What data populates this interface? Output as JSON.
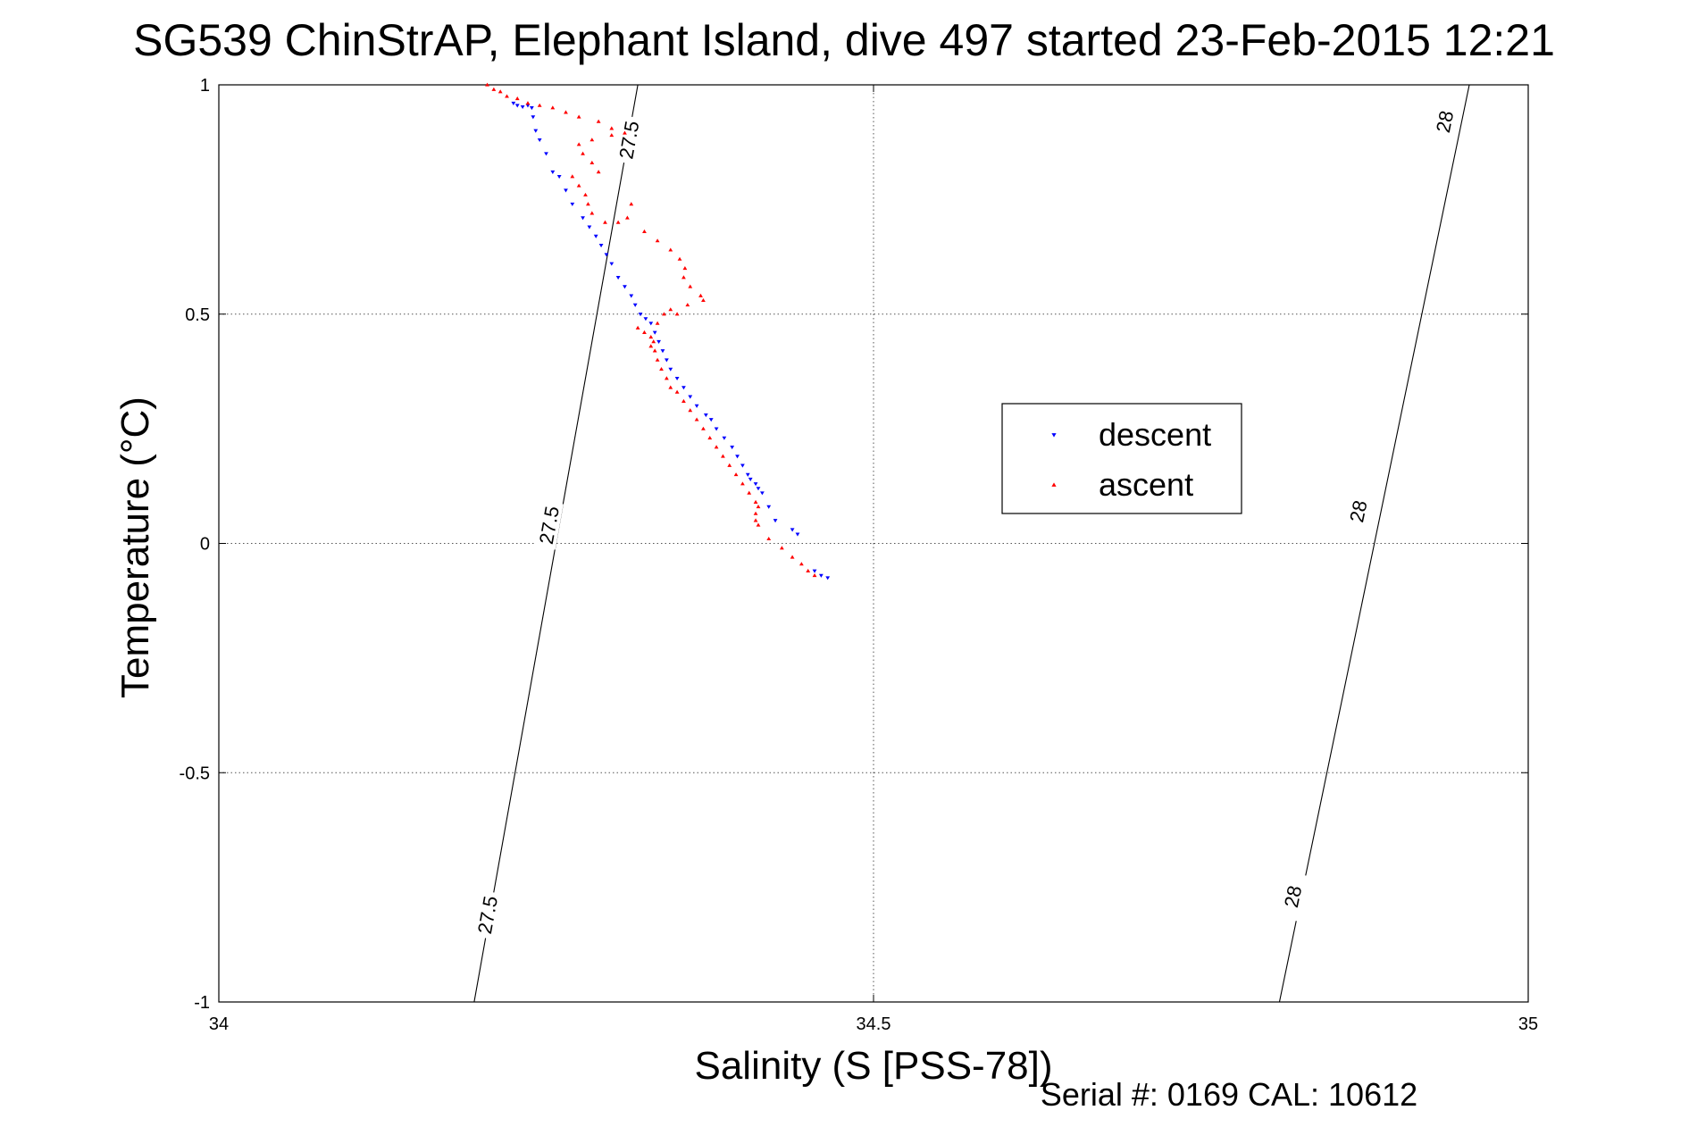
{
  "chart_data": {
    "type": "scatter",
    "title": "SG539 ChinStrAP, Elephant Island, dive 497 started 23-Feb-2015 12:21",
    "xlabel": "Salinity (S [PSS-78])",
    "ylabel": "Temperature (°C)",
    "xlim": [
      34,
      35
    ],
    "ylim": [
      -1,
      1
    ],
    "xticks": [
      "34",
      "34.5",
      "35"
    ],
    "yticks": [
      "1",
      "0.5",
      "0",
      "-0.5",
      "-1"
    ],
    "grid": true,
    "legend_position": "center-right",
    "footer": "Serial #: 0169 CAL: 10612",
    "contours": [
      {
        "label": "27.5",
        "points": [
          [
            34.195,
            -1.0
          ],
          [
            34.32,
            1.0
          ]
        ],
        "label_positions": [
          [
            34.205,
            -0.81
          ],
          [
            34.252,
            0.04
          ],
          [
            34.313,
            0.88
          ]
        ]
      },
      {
        "label": "28",
        "points": [
          [
            34.81,
            -1.0
          ],
          [
            34.955,
            1.0
          ]
        ],
        "label_positions": [
          [
            34.82,
            -0.77
          ],
          [
            34.87,
            0.07
          ],
          [
            34.936,
            0.92
          ]
        ]
      }
    ],
    "series": [
      {
        "name": "descent",
        "color": "#0000ff",
        "marker": "triangle-down",
        "points": [
          [
            34.225,
            0.96
          ],
          [
            34.228,
            0.955
          ],
          [
            34.232,
            0.952
          ],
          [
            34.236,
            0.955
          ],
          [
            34.239,
            0.95
          ],
          [
            34.24,
            0.93
          ],
          [
            34.242,
            0.9
          ],
          [
            34.245,
            0.88
          ],
          [
            34.25,
            0.85
          ],
          [
            34.255,
            0.81
          ],
          [
            34.26,
            0.8
          ],
          [
            34.265,
            0.77
          ],
          [
            34.27,
            0.74
          ],
          [
            34.278,
            0.71
          ],
          [
            34.283,
            0.69
          ],
          [
            34.288,
            0.67
          ],
          [
            34.292,
            0.65
          ],
          [
            34.296,
            0.63
          ],
          [
            34.3,
            0.61
          ],
          [
            34.305,
            0.58
          ],
          [
            34.31,
            0.56
          ],
          [
            34.315,
            0.54
          ],
          [
            34.318,
            0.52
          ],
          [
            34.322,
            0.5
          ],
          [
            34.326,
            0.49
          ],
          [
            34.33,
            0.48
          ],
          [
            34.333,
            0.46
          ],
          [
            34.336,
            0.44
          ],
          [
            34.339,
            0.42
          ],
          [
            34.342,
            0.4
          ],
          [
            34.345,
            0.38
          ],
          [
            34.35,
            0.36
          ],
          [
            34.355,
            0.34
          ],
          [
            34.36,
            0.32
          ],
          [
            34.365,
            0.3
          ],
          [
            34.372,
            0.28
          ],
          [
            34.376,
            0.27
          ],
          [
            34.38,
            0.25
          ],
          [
            34.386,
            0.23
          ],
          [
            34.392,
            0.21
          ],
          [
            34.396,
            0.19
          ],
          [
            34.4,
            0.17
          ],
          [
            34.404,
            0.15
          ],
          [
            34.406,
            0.14
          ],
          [
            34.41,
            0.13
          ],
          [
            34.412,
            0.12
          ],
          [
            34.415,
            0.11
          ],
          [
            34.42,
            0.08
          ],
          [
            34.425,
            0.05
          ],
          [
            34.438,
            0.03
          ],
          [
            34.442,
            0.02
          ],
          [
            34.455,
            -0.06
          ],
          [
            34.46,
            -0.07
          ],
          [
            34.465,
            -0.075
          ]
        ]
      },
      {
        "name": "ascent",
        "color": "#ff0000",
        "marker": "triangle-up",
        "points": [
          [
            34.205,
            1.0
          ],
          [
            34.21,
            0.99
          ],
          [
            34.215,
            0.985
          ],
          [
            34.22,
            0.975
          ],
          [
            34.228,
            0.97
          ],
          [
            34.236,
            0.96
          ],
          [
            34.245,
            0.955
          ],
          [
            34.255,
            0.95
          ],
          [
            34.265,
            0.94
          ],
          [
            34.275,
            0.93
          ],
          [
            34.29,
            0.92
          ],
          [
            34.3,
            0.905
          ],
          [
            34.31,
            0.895
          ],
          [
            34.3,
            0.89
          ],
          [
            34.285,
            0.88
          ],
          [
            34.275,
            0.87
          ],
          [
            34.278,
            0.85
          ],
          [
            34.285,
            0.83
          ],
          [
            34.29,
            0.81
          ],
          [
            34.27,
            0.8
          ],
          [
            34.275,
            0.78
          ],
          [
            34.28,
            0.76
          ],
          [
            34.282,
            0.74
          ],
          [
            34.285,
            0.72
          ],
          [
            34.295,
            0.7
          ],
          [
            34.305,
            0.7
          ],
          [
            34.315,
            0.74
          ],
          [
            34.312,
            0.71
          ],
          [
            34.325,
            0.68
          ],
          [
            34.335,
            0.66
          ],
          [
            34.345,
            0.64
          ],
          [
            34.352,
            0.62
          ],
          [
            34.356,
            0.6
          ],
          [
            34.355,
            0.58
          ],
          [
            34.36,
            0.56
          ],
          [
            34.368,
            0.54
          ],
          [
            34.37,
            0.53
          ],
          [
            34.358,
            0.52
          ],
          [
            34.345,
            0.51
          ],
          [
            34.34,
            0.5
          ],
          [
            34.35,
            0.5
          ],
          [
            34.335,
            0.48
          ],
          [
            34.32,
            0.47
          ],
          [
            34.325,
            0.46
          ],
          [
            34.33,
            0.45
          ],
          [
            34.332,
            0.44
          ],
          [
            34.33,
            0.43
          ],
          [
            34.333,
            0.42
          ],
          [
            34.335,
            0.4
          ],
          [
            34.338,
            0.38
          ],
          [
            34.342,
            0.36
          ],
          [
            34.345,
            0.34
          ],
          [
            34.35,
            0.33
          ],
          [
            34.355,
            0.31
          ],
          [
            34.36,
            0.29
          ],
          [
            34.365,
            0.27
          ],
          [
            34.37,
            0.25
          ],
          [
            34.375,
            0.23
          ],
          [
            34.38,
            0.21
          ],
          [
            34.385,
            0.19
          ],
          [
            34.39,
            0.17
          ],
          [
            34.395,
            0.15
          ],
          [
            34.4,
            0.13
          ],
          [
            34.405,
            0.11
          ],
          [
            34.41,
            0.09
          ],
          [
            34.412,
            0.08
          ],
          [
            34.41,
            0.065
          ],
          [
            34.41,
            0.05
          ],
          [
            34.412,
            0.04
          ],
          [
            34.42,
            0.01
          ],
          [
            34.43,
            -0.01
          ],
          [
            34.438,
            -0.03
          ],
          [
            34.445,
            -0.045
          ],
          [
            34.45,
            -0.06
          ],
          [
            34.455,
            -0.07
          ]
        ]
      }
    ]
  }
}
